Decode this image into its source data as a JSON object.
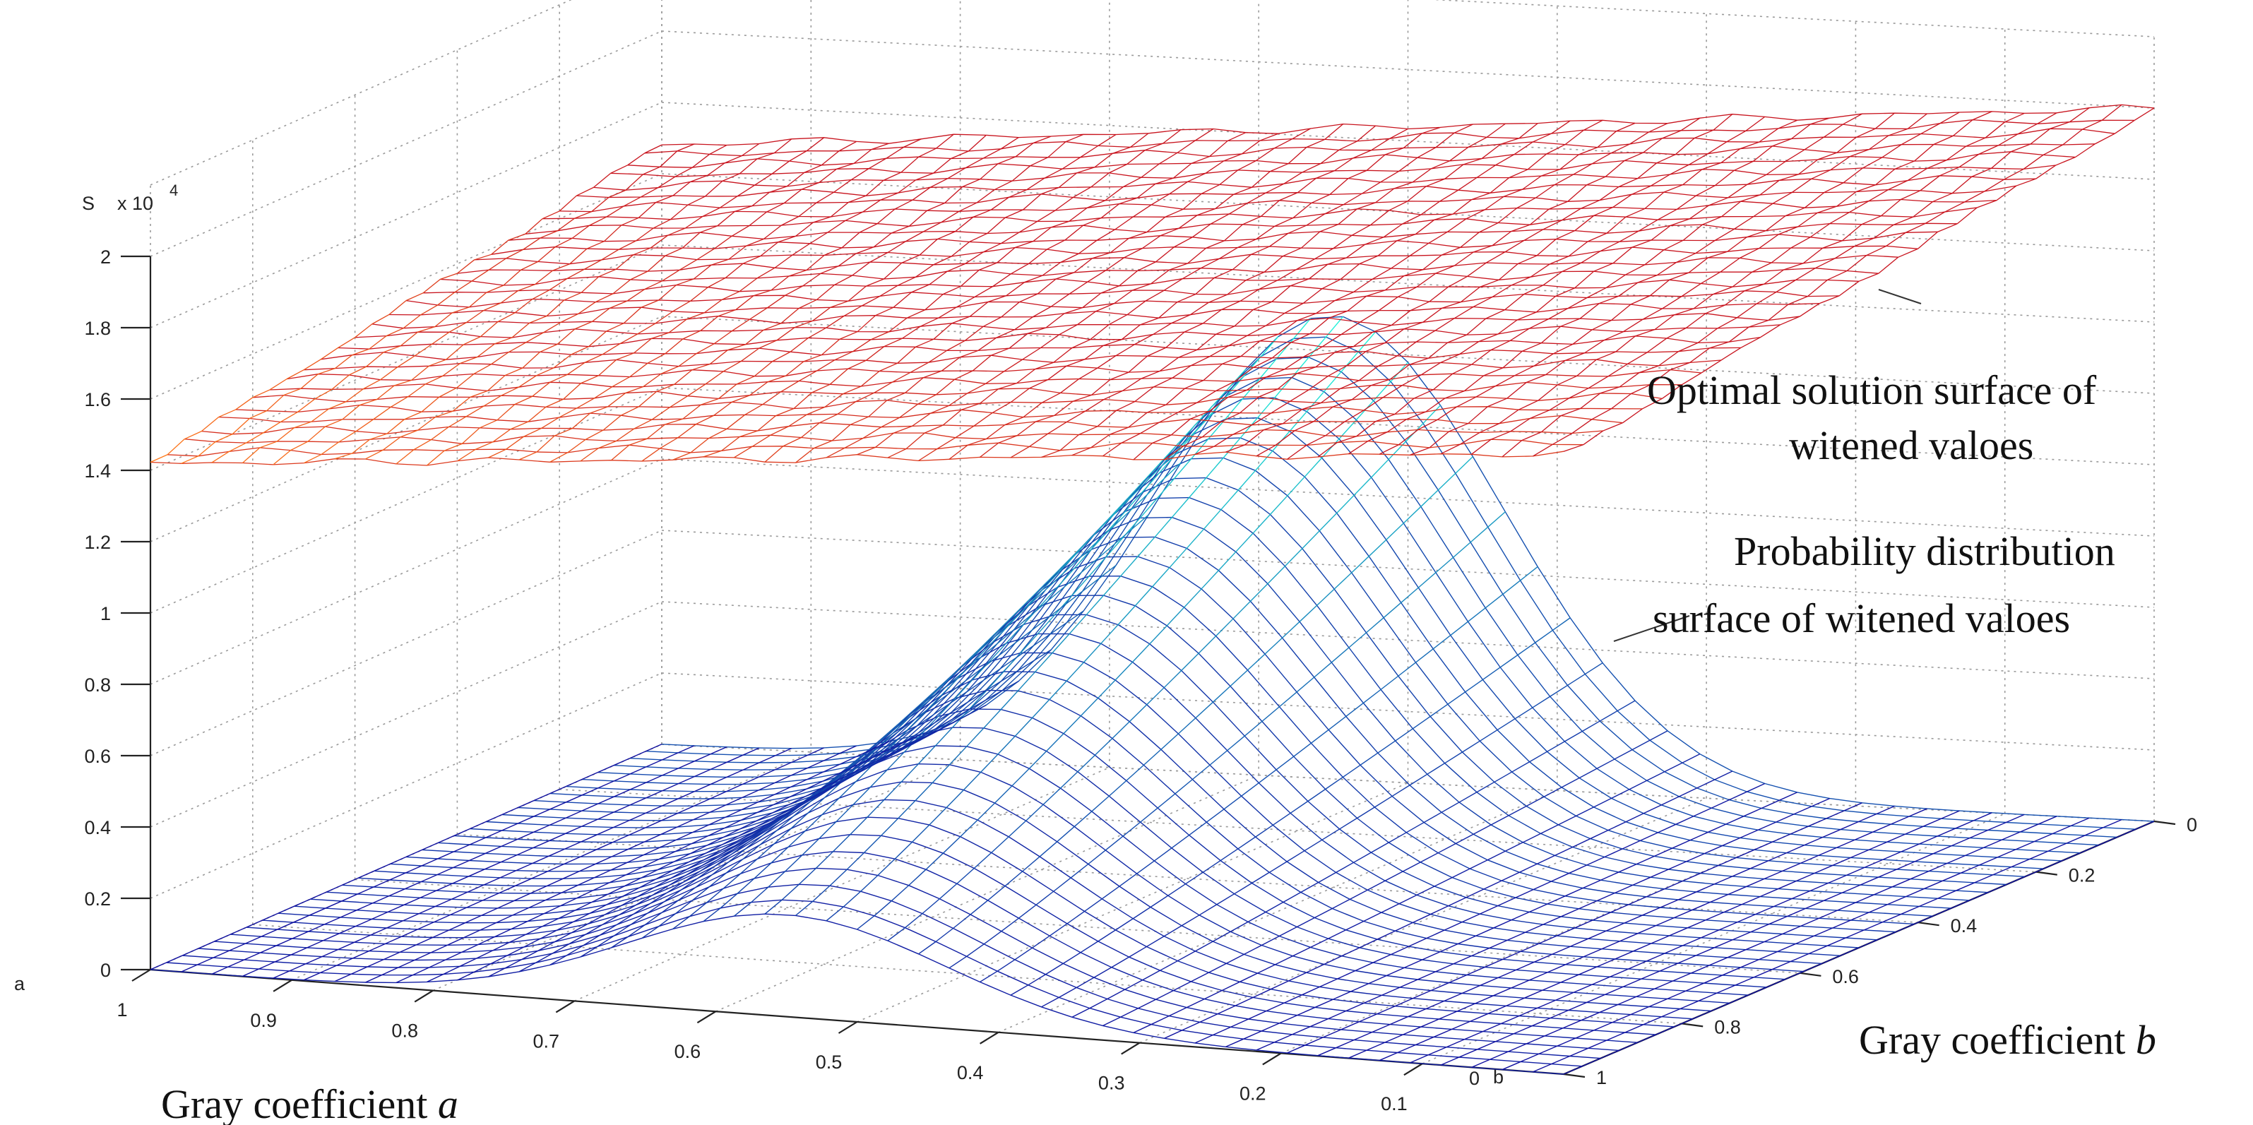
{
  "chart_data": {
    "type": "surface3d",
    "z_axis": {
      "label": "S",
      "multiplier": "x 10",
      "multiplier_exp": "4",
      "ticks": [
        "0",
        "0.2",
        "0.4",
        "0.6",
        "0.8",
        "1",
        "1.2",
        "1.4",
        "1.6",
        "1.8",
        "2"
      ],
      "range": [
        0,
        2.0
      ]
    },
    "a_axis": {
      "short_label": "a",
      "title_text": "Gray coefficient ",
      "title_var": "a",
      "ticks": [
        "1",
        "0.9",
        "0.8",
        "0.7",
        "0.6",
        "0.5",
        "0.4",
        "0.3",
        "0.2",
        "0.1"
      ],
      "range": [
        1,
        0
      ]
    },
    "b_axis": {
      "short_label": "b",
      "title_text": "Gray coefficient ",
      "title_var": "b",
      "ticks": [
        "0",
        "0.2",
        "0.4",
        "0.6",
        "0.8",
        "1"
      ],
      "range": [
        0,
        1
      ]
    },
    "b_far_end_label": "0",
    "grid": true,
    "series": [
      {
        "name": "Optimal solution surface of witened valoes",
        "annotation_lines": [
          "Optimal solution surface of",
          "witened valoes"
        ],
        "z_range": [
          1.42,
          2.0
        ],
        "color_low": "#ff7a1a",
        "color_high": "#c8141e"
      },
      {
        "name": "Probability distribution surface of witened valoes",
        "annotation_lines": [
          "Probability distribution",
          "surface of witened valoes"
        ],
        "z_range": [
          0.0,
          1.3
        ],
        "peak_a": 0.55,
        "color_low": "#1010a0",
        "color_high": "#20f0d8"
      }
    ]
  }
}
